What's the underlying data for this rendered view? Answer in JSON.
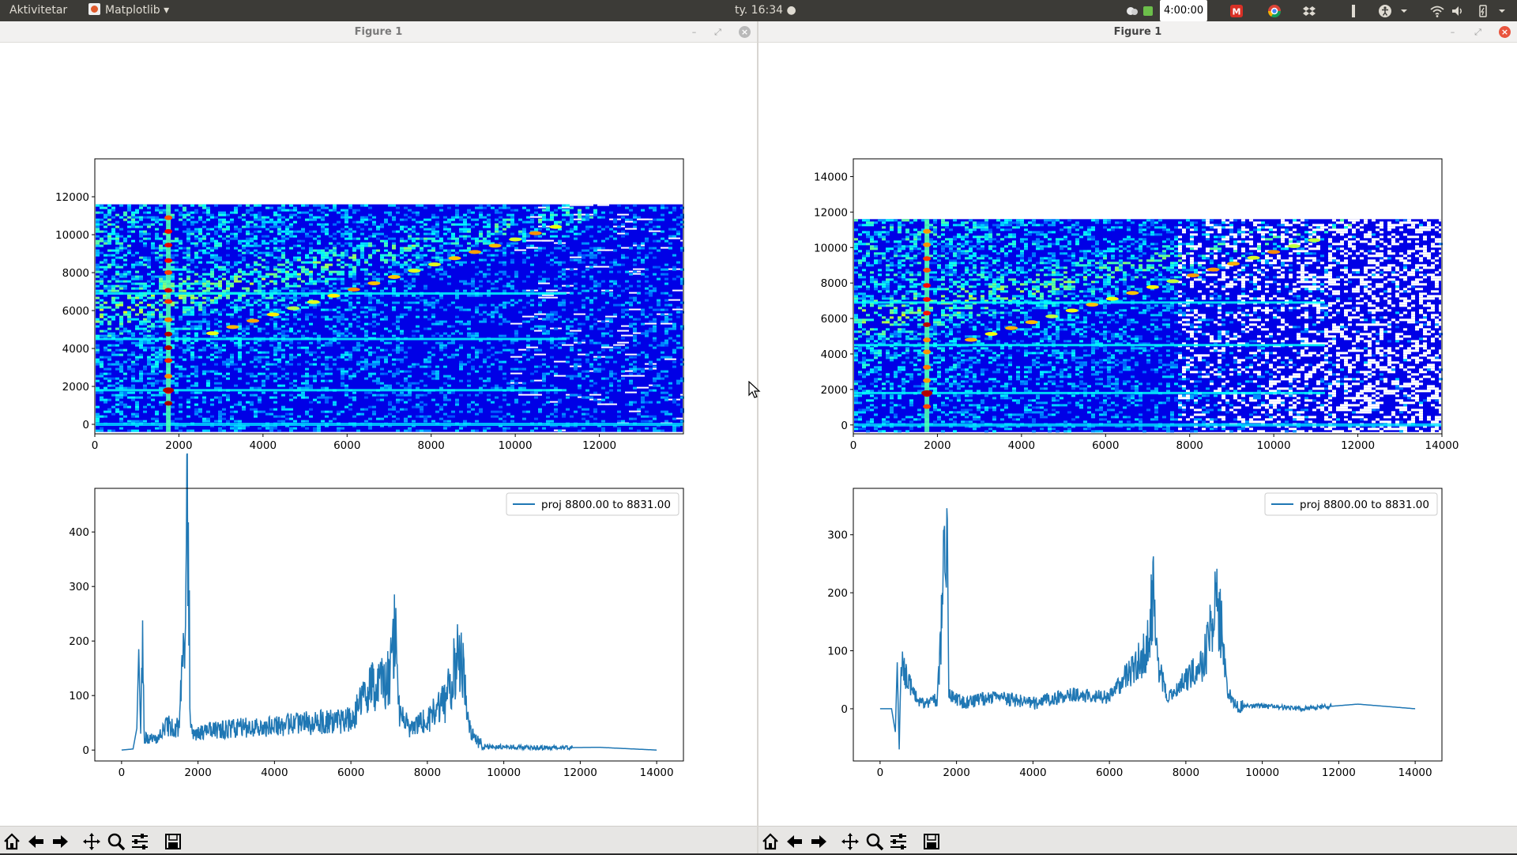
{
  "topbar": {
    "activities": "Aktivitetar",
    "app_name": "Matplotlib",
    "clock": "ty. 16:34",
    "timer": "4:00:00"
  },
  "windows": [
    {
      "title": "Figure 1",
      "plots": {
        "heatmap": {
          "xticks": [
            "0",
            "2000",
            "4000",
            "6000",
            "8000",
            "10000",
            "12000"
          ],
          "yticks": [
            "0",
            "2000",
            "4000",
            "6000",
            "8000",
            "10000",
            "12000"
          ]
        },
        "line": {
          "xticks": [
            "0",
            "2000",
            "4000",
            "6000",
            "8000",
            "10000",
            "12000",
            "14000"
          ],
          "yticks": [
            "0",
            "100",
            "200",
            "300",
            "400"
          ],
          "legend": "proj 8800.00 to 8831.00"
        }
      }
    },
    {
      "title": "Figure 1",
      "plots": {
        "heatmap": {
          "xticks": [
            "0",
            "2000",
            "4000",
            "6000",
            "8000",
            "10000",
            "12000",
            "14000"
          ],
          "yticks": [
            "0",
            "2000",
            "4000",
            "6000",
            "8000",
            "10000",
            "12000",
            "14000"
          ]
        },
        "line": {
          "xticks": [
            "0",
            "2000",
            "4000",
            "6000",
            "8000",
            "10000",
            "12000",
            "14000"
          ],
          "yticks": [
            "0",
            "100",
            "200",
            "300"
          ],
          "legend": "proj 8800.00 to 8831.00"
        }
      }
    }
  ],
  "toolbar_icons": [
    "home-icon",
    "back-arrow-icon",
    "forward-arrow-icon",
    "pan-icon",
    "zoom-icon",
    "subplots-icon",
    "save-icon"
  ],
  "chart_data": [
    {
      "type": "heatmap",
      "figure": "left",
      "xlim": [
        0,
        14000
      ],
      "ylim": [
        -500,
        14000
      ],
      "colormap": "jet",
      "data_extent_y": [
        -400,
        11600
      ],
      "hot_columns_x": [
        1750
      ],
      "hot_rows_y": [
        1800,
        4500,
        6900
      ],
      "grid": false
    },
    {
      "type": "line",
      "figure": "left",
      "xlim": [
        -700,
        14700
      ],
      "ylim": [
        -20,
        480
      ],
      "color": "#1f77b4",
      "legend_position": "top-right",
      "series": [
        {
          "name": "proj 8800.00 to 8831.00",
          "x": [
            0,
            300,
            400,
            450,
            500,
            550,
            600,
            1000,
            1200,
            1500,
            1650,
            1720,
            1760,
            1800,
            1900,
            2200,
            3000,
            4000,
            5000,
            6000,
            6500,
            7000,
            7150,
            7250,
            7500,
            8000,
            8500,
            8800,
            8900,
            9100,
            9300,
            9600,
            10000,
            11000,
            12500,
            14000
          ],
          "y": [
            0,
            2,
            40,
            185,
            30,
            185,
            20,
            25,
            45,
            40,
            200,
            460,
            330,
            40,
            30,
            35,
            40,
            45,
            50,
            55,
            110,
            130,
            235,
            80,
            40,
            55,
            90,
            175,
            160,
            40,
            15,
            6,
            6,
            4,
            5,
            0
          ]
        }
      ],
      "grid": false
    },
    {
      "type": "heatmap",
      "figure": "right",
      "xlim": [
        0,
        14000
      ],
      "ylim": [
        -500,
        15000
      ],
      "colormap": "jet",
      "data_extent_y": [
        -400,
        11600
      ],
      "hot_columns_x": [
        1750
      ],
      "hot_rows_y": [
        1800,
        4500,
        6900
      ],
      "grid": false
    },
    {
      "type": "line",
      "figure": "right",
      "xlim": [
        -700,
        14700
      ],
      "ylim": [
        -90,
        380
      ],
      "color": "#1f77b4",
      "legend_position": "top-right",
      "series": [
        {
          "name": "proj 8800.00 to 8831.00",
          "x": [
            0,
            300,
            400,
            450,
            500,
            550,
            1000,
            1500,
            1650,
            1720,
            1760,
            1800,
            1900,
            2200,
            3000,
            4000,
            5000,
            6000,
            6500,
            7000,
            7150,
            7250,
            7500,
            8000,
            8500,
            8800,
            8900,
            9100,
            9300,
            9600,
            10000,
            11000,
            12500,
            14000
          ],
          "y": [
            0,
            0,
            -40,
            80,
            -70,
            80,
            10,
            15,
            200,
            370,
            250,
            30,
            20,
            10,
            20,
            10,
            25,
            20,
            60,
            110,
            225,
            90,
            20,
            50,
            90,
            175,
            160,
            30,
            5,
            5,
            5,
            0,
            8,
            0
          ]
        }
      ],
      "grid": false
    }
  ]
}
